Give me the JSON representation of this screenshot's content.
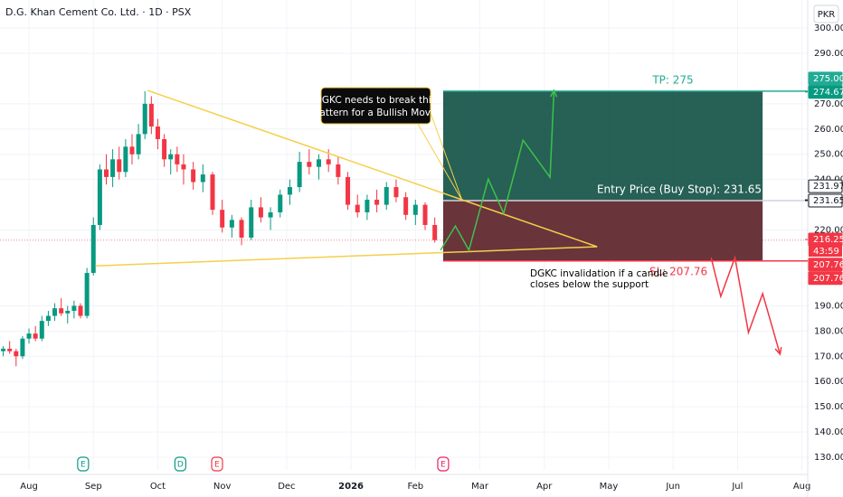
{
  "chart_data": {
    "type": "candlestick",
    "title": "D.G. Khan Cement Co. Ltd. · 1D · PSX",
    "currency": "PKR",
    "up_color": "#089981",
    "down_color": "#f23645",
    "x": [
      -0.4,
      -0.3,
      -0.2,
      -0.1,
      0.0,
      0.1,
      0.2,
      0.3,
      0.4,
      0.5,
      0.6,
      0.7,
      0.8,
      0.9,
      1.0,
      1.1,
      1.2,
      1.3,
      1.4,
      1.5,
      1.6,
      1.7,
      1.8,
      1.9,
      2.0,
      2.1,
      2.2,
      2.3,
      2.4,
      2.55,
      2.7,
      2.85,
      3.0,
      3.15,
      3.3,
      3.45,
      3.6,
      3.75,
      3.9,
      4.05,
      4.2,
      4.35,
      4.5,
      4.65,
      4.8,
      4.95,
      5.1,
      5.25,
      5.4,
      5.55,
      5.7,
      5.85,
      6.0,
      6.15,
      6.3
    ],
    "open": [
      172,
      173,
      172,
      170,
      177,
      179,
      177,
      184,
      186,
      189,
      187,
      188,
      190,
      186,
      203,
      222,
      244,
      241,
      248,
      243,
      253,
      250,
      258,
      270,
      261,
      256,
      248,
      250,
      246,
      244,
      239,
      242,
      228,
      221,
      224,
      217,
      229,
      225,
      227,
      234,
      237,
      247,
      245,
      248,
      246,
      241,
      230,
      227,
      232,
      230,
      237,
      233,
      226,
      230,
      222
    ],
    "high": [
      174,
      176,
      173,
      178,
      181,
      182,
      186,
      188,
      191,
      193,
      190,
      192,
      191,
      205,
      225,
      246,
      250,
      252,
      253,
      256,
      258,
      262,
      275,
      273,
      264,
      258,
      252,
      253,
      250,
      247,
      246,
      243,
      232,
      226,
      225,
      232,
      233,
      229,
      236,
      240,
      251,
      252,
      250,
      252,
      249,
      243,
      234,
      234,
      236,
      239,
      240,
      235,
      232,
      231,
      225
    ],
    "low": [
      170,
      171,
      166,
      169,
      175,
      176,
      176,
      182,
      184,
      186,
      183,
      185,
      185,
      185,
      202,
      220,
      238,
      237,
      240,
      241,
      246,
      248,
      256,
      258,
      252,
      245,
      242,
      243,
      238,
      236,
      235,
      226,
      219,
      217,
      214,
      216,
      223,
      220,
      225,
      230,
      235,
      242,
      240,
      243,
      238,
      228,
      225,
      224,
      227,
      228,
      231,
      224,
      222,
      220,
      215
    ],
    "close": [
      173,
      172,
      170,
      177,
      179,
      177,
      184,
      186,
      189,
      187,
      188,
      190,
      186,
      203,
      222,
      244,
      241,
      248,
      243,
      253,
      250,
      258,
      270,
      261,
      256,
      248,
      250,
      246,
      244,
      239,
      242,
      228,
      221,
      224,
      217,
      229,
      225,
      227,
      234,
      237,
      247,
      245,
      248,
      246,
      241,
      230,
      227,
      232,
      230,
      237,
      233,
      226,
      230,
      222,
      216
    ],
    "xlim": [
      -0.45,
      12.09
    ],
    "xticks": [
      {
        "value": 0,
        "label": "Aug"
      },
      {
        "value": 1,
        "label": "Sep"
      },
      {
        "value": 2,
        "label": "Oct"
      },
      {
        "value": 3,
        "label": "Nov"
      },
      {
        "value": 4,
        "label": "Dec"
      },
      {
        "value": 5,
        "label": "2026"
      },
      {
        "value": 6,
        "label": "Feb"
      },
      {
        "value": 7,
        "label": "Mar"
      },
      {
        "value": 8,
        "label": "Apr"
      },
      {
        "value": 9,
        "label": "May"
      },
      {
        "value": 10,
        "label": "Jun"
      },
      {
        "value": 11,
        "label": "Jul"
      },
      {
        "value": 12,
        "label": "Aug"
      }
    ],
    "ylim": [
      125,
      311.1
    ],
    "yticks": [
      {
        "value": 300,
        "label": "300.00"
      },
      {
        "value": 290,
        "label": "290.00"
      },
      {
        "value": 270,
        "label": "270.00"
      },
      {
        "value": 260,
        "label": "260.00"
      },
      {
        "value": 250,
        "label": "250.00"
      },
      {
        "value": 240,
        "label": "240.00"
      },
      {
        "value": 220,
        "label": "220.00"
      },
      {
        "value": 190,
        "label": "190.00"
      },
      {
        "value": 180,
        "label": "180.00"
      },
      {
        "value": 170,
        "label": "170.00"
      },
      {
        "value": 160,
        "label": "160.00"
      },
      {
        "value": 150,
        "label": "150.00"
      },
      {
        "value": 140,
        "label": "140.00"
      },
      {
        "value": 130,
        "label": "130.00"
      }
    ],
    "grid": true,
    "trendline_color": "#f5cf4a",
    "trendlines": [
      {
        "x": [
          1.84,
          8.82
        ],
        "y": [
          275.3,
          213.4
        ]
      },
      {
        "x": [
          1.03,
          8.82
        ],
        "y": [
          205.8,
          213.4
        ]
      }
    ],
    "position": {
      "x": [
        6.43,
        11.39
      ],
      "tp": {
        "value": 275,
        "label": "TP: 275"
      },
      "entry": {
        "value": 231.65,
        "label": "Entry Price (Buy Stop): 231.65"
      },
      "sl": {
        "value": 207.76,
        "label": "SL: 207.76"
      }
    },
    "projections": [
      {
        "color": "#3cc24a",
        "x": [
          6.39,
          6.62,
          6.83,
          7.13,
          7.37,
          7.67,
          8.09,
          8.15
        ],
        "y": [
          212.0,
          221.6,
          212.0,
          240.2,
          226.6,
          255.6,
          240.9,
          275.3
        ]
      },
      {
        "color": "#f23645",
        "x": [
          10.59,
          10.74,
          10.96,
          11.17,
          11.39,
          11.66
        ],
        "y": [
          209.1,
          193.7,
          209.1,
          179.4,
          194.8,
          170.8
        ]
      }
    ],
    "callouts": [
      {
        "lines": [
          "DGKC needs to break this",
          "Pattern for a Bullish Move"
        ]
      },
      {
        "lines": [
          "DGKC invalidation if a candle",
          "closes below the support"
        ]
      }
    ],
    "price_tags": [
      {
        "value": 275,
        "label": "275.00",
        "color": "#22ab94"
      },
      {
        "value": 274.67,
        "label": "274.67",
        "color": "#089981"
      },
      {
        "value": 231.97,
        "label": "231.97",
        "color": "#ffffff"
      },
      {
        "value": 231.65,
        "label": "231.65",
        "color": "#ffffff"
      },
      {
        "value": 216.25,
        "label": "216.25",
        "color": "#f23645"
      },
      {
        "value": 207.76,
        "label": "207.76",
        "color": "#f23645"
      },
      {
        "value": 207.76,
        "label": "207.76",
        "color": "#f23645"
      }
    ],
    "countdown": "43:59",
    "events": [
      {
        "x": 0.84,
        "label": "E",
        "color": "#089981"
      },
      {
        "x": 2.35,
        "label": "D",
        "color": "#089981"
      },
      {
        "x": 2.92,
        "label": "E",
        "color": "#f23645"
      },
      {
        "x": 6.43,
        "label": "E",
        "color": "#e91e63"
      }
    ]
  }
}
